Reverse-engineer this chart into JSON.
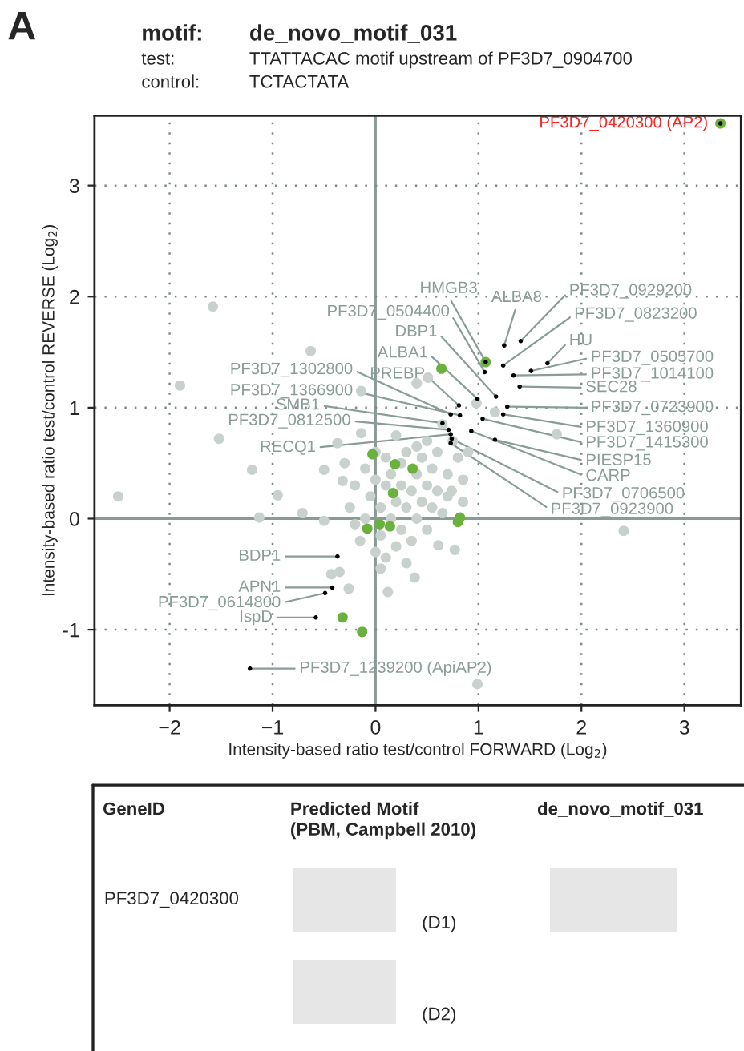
{
  "chart_data": {
    "type": "scatter",
    "title": "motif:",
    "xlabel": "Intensity-based ratio test/control FORWARD (Log$_{2}$)",
    "ylabel": "Intensity-based ratio test/control REVERSE (Log$_{2}$)",
    "xlim": [
      -2.73,
      3.55
    ],
    "ylim": [
      -1.68,
      3.63
    ],
    "xticks": [
      {
        "value": -2,
        "label": "−2"
      },
      {
        "value": -1,
        "label": "−1"
      },
      0,
      1,
      2,
      3
    ],
    "yticks": [
      {
        "value": -1,
        "label": "-1"
      },
      0,
      1,
      2,
      3
    ],
    "grid": true,
    "marker": "circle",
    "series": [
      {
        "color": "#c9d1cd",
        "x": [
          -1.58,
          -0.63,
          -1.9,
          -1.52,
          -0.14,
          0.4,
          0.51,
          1.76,
          1.16,
          0.98,
          -2.5,
          -1.2,
          -0.95,
          -1.13,
          -0.71,
          2.41,
          0.99,
          0.12,
          -0.26,
          0.38,
          0.77,
          0.61,
          -0.43,
          -0.35,
          -0.5,
          0.85,
          0.74,
          -0.5,
          -0.14,
          -0.37,
          -0.32,
          -0.25,
          -0.2,
          -0.15,
          -0.1,
          -0.1,
          -0.05,
          0,
          0,
          0.05,
          0.05,
          0.1,
          0.1,
          0.1,
          0.15,
          0.15,
          0.2,
          0.2,
          0.25,
          0.25,
          0.25,
          0.3,
          0.3,
          0.35,
          0.35,
          0.4,
          0.4,
          0.45,
          0.45,
          0.5,
          0.5,
          0.55,
          0.55,
          0.6,
          0.6,
          0.65,
          0.7,
          0.7,
          0.75,
          0.8,
          0.5,
          0.0,
          -0.2,
          0.3,
          0.05,
          0.2,
          0.4,
          0.9,
          0.65,
          0.85,
          -0.3
        ],
        "values": [
          1.91,
          1.51,
          1.2,
          0.72,
          1.15,
          1.22,
          1.27,
          0.76,
          0.96,
          1.04,
          0.2,
          0.44,
          0.21,
          0.01,
          0.05,
          -0.11,
          -1.49,
          -0.66,
          -0.63,
          -0.53,
          -0.28,
          -0.24,
          -0.5,
          -0.48,
          0.44,
          0.35,
          0.25,
          -0.02,
          0.77,
          0.68,
          0.34,
          0.1,
          0.3,
          -0.2,
          0.45,
          0.0,
          0.2,
          -0.3,
          0.35,
          0.1,
          -0.15,
          0.55,
          0.3,
          -0.35,
          0.0,
          0.4,
          0.15,
          -0.25,
          0.5,
          0.3,
          -0.1,
          0.1,
          0.6,
          0.25,
          -0.2,
          0.4,
          0.0,
          0.15,
          0.55,
          0.3,
          -0.1,
          0.45,
          0.1,
          0.25,
          0.6,
          0.05,
          0.4,
          0.2,
          0.7,
          0.55,
          0.7,
          0.6,
          -0.05,
          -0.4,
          -0.45,
          0.75,
          0.65,
          0.6,
          0.85,
          0.15,
          0.5
        ]
      },
      {
        "color": "#6ab23e",
        "x": [
          3.35,
          1.07,
          0.64,
          -0.03,
          0.19,
          0.36,
          0.17,
          -0.08,
          0.04,
          0.14,
          0.82,
          0.8,
          -0.32,
          -0.13
        ],
        "values": [
          3.56,
          1.41,
          1.35,
          0.58,
          0.49,
          0.45,
          0.23,
          -0.09,
          -0.05,
          -0.07,
          0.01,
          -0.03,
          -0.89,
          -1.02
        ]
      },
      {
        "color": "#000000",
        "x": [
          3.35,
          1.41,
          1.25,
          1.07,
          1.24,
          1.67,
          1.51,
          1.34,
          1.06,
          1.4,
          1.17,
          0.99,
          0.81,
          1.28,
          1.24,
          0.73,
          0.82,
          0.65,
          0.71,
          0.73,
          1.04,
          1.16,
          0.93,
          0.74,
          0.73,
          -0.37,
          -0.42,
          -0.49,
          -0.58,
          -1.22
        ],
        "values": [
          3.56,
          1.6,
          1.56,
          1.41,
          1.38,
          1.4,
          1.33,
          1.29,
          1.32,
          1.19,
          1.1,
          1.08,
          1.02,
          1.01,
          0.94,
          0.94,
          0.93,
          0.86,
          0.8,
          0.76,
          0.9,
          0.71,
          0.79,
          0.72,
          0.68,
          -0.34,
          -0.62,
          -0.67,
          -0.89,
          -1.35
        ]
      }
    ],
    "annotations": [
      {
        "text": "PF3D7_0420300 (AP2)",
        "x": 3.35,
        "y": 3.56
      },
      {
        "text": "PF3D7_0929200",
        "x": 1.41,
        "y": 1.6
      },
      {
        "text": "ALBA8",
        "x": 1.25,
        "y": 1.56
      },
      {
        "text": "HMGB3",
        "x": 1.07,
        "y": 1.41
      },
      {
        "text": "PF3D7_0823200",
        "x": 1.24,
        "y": 1.38
      },
      {
        "text": "HU",
        "x": 1.67,
        "y": 1.4
      },
      {
        "text": "PF3D7_0505700",
        "x": 1.51,
        "y": 1.33
      },
      {
        "text": "PF3D7_1014100",
        "x": 1.34,
        "y": 1.29
      },
      {
        "text": "PF3D7_0504400",
        "x": 1.06,
        "y": 1.32
      },
      {
        "text": "SEC28",
        "x": 1.4,
        "y": 1.19
      },
      {
        "text": "DBP1",
        "x": 1.17,
        "y": 1.1
      },
      {
        "text": "ALBA1",
        "x": 0.99,
        "y": 1.08
      },
      {
        "text": "PREBP",
        "x": 0.81,
        "y": 1.02
      },
      {
        "text": "PF3D7_0723900",
        "x": 1.28,
        "y": 1.01
      },
      {
        "text": "PF3D7_1360900",
        "x": 1.24,
        "y": 0.94
      },
      {
        "text": "PF3D7_1302800",
        "x": 0.73,
        "y": 0.94
      },
      {
        "text": "PF3D7_1366900",
        "x": 0.82,
        "y": 0.93
      },
      {
        "text": "SMB1",
        "x": 0.65,
        "y": 0.86
      },
      {
        "text": "PF3D7_0812500",
        "x": 0.71,
        "y": 0.8
      },
      {
        "text": "RECQ1",
        "x": 0.73,
        "y": 0.76
      },
      {
        "text": "PF3D7_1415300",
        "x": 1.04,
        "y": 0.9
      },
      {
        "text": "PIESP15",
        "x": 1.16,
        "y": 0.71
      },
      {
        "text": "CARP",
        "x": 0.93,
        "y": 0.79
      },
      {
        "text": "PF3D7_0706500",
        "x": 0.74,
        "y": 0.72
      },
      {
        "text": "PF3D7_0923900",
        "x": 0.73,
        "y": 0.68
      },
      {
        "text": "BDP1",
        "x": -0.37,
        "y": -0.34
      },
      {
        "text": "APN1",
        "x": -0.42,
        "y": -0.62
      },
      {
        "text": "PF3D7_0614800",
        "x": -0.49,
        "y": -0.67
      },
      {
        "text": "IspD",
        "x": -0.58,
        "y": -0.89
      },
      {
        "text": "PF3D7_1239200 (ApiAP2)",
        "x": -1.22,
        "y": -1.35
      },
      "A",
      "de_novo_motif_031",
      "test:",
      "TTATTACAC motif upstream of PF3D7_0904700",
      "control:",
      "TCTACTATA",
      "GeneID",
      "Predicted Motif\n(PBM, Campbell 2010)",
      "de_novo_motif_031",
      "PF3D7_0420300",
      "(D1)",
      "(D2)"
    ]
  }
}
